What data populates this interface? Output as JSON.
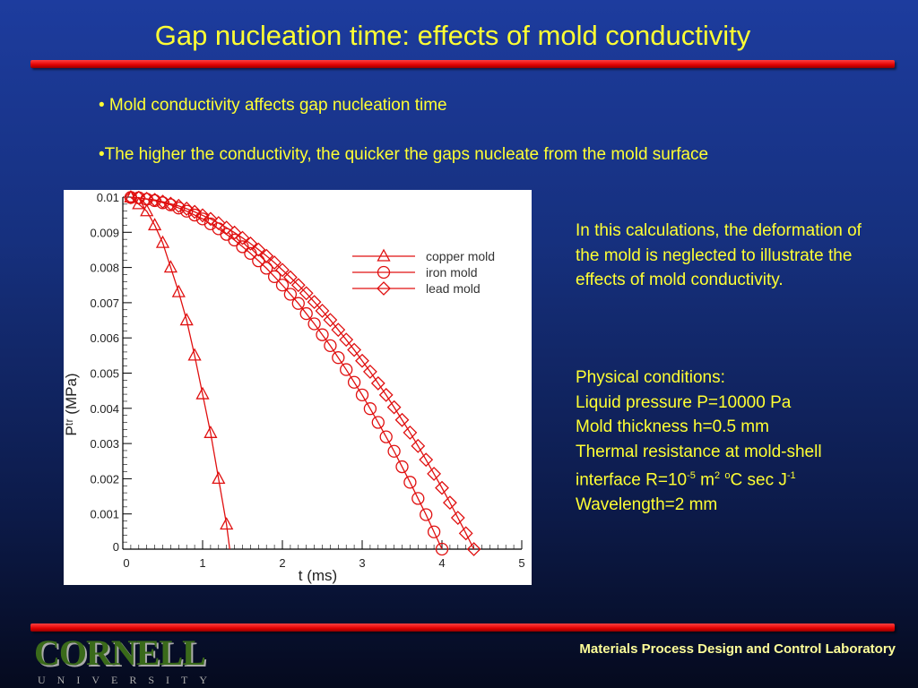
{
  "title": "Gap nucleation time: effects of mold conductivity",
  "bullets": [
    "• Mold conductivity affects gap nucleation time",
    "•The higher the conductivity, the quicker the gaps nucleate from the mold surface"
  ],
  "side": {
    "note": "In this calculations, the deformation of the mold is neglected to illustrate the effects of mold conductivity.",
    "conditions_title": "Physical conditions:",
    "pressure": "Liquid pressure P=10000 Pa",
    "thickness": "Mold thickness h=0.5 mm",
    "resistance_1": "Thermal resistance at mold-shell",
    "resistance_2a": "interface  R=10",
    "resistance_exp1": "-5",
    "resistance_2b": " m",
    "resistance_exp2": "2",
    "resistance_2c": " ",
    "resistance_exp3": "o",
    "resistance_2d": "C sec J",
    "resistance_exp4": "-1",
    "wavelength": "Wavelength=2 mm"
  },
  "footer": {
    "lab": "Materials Process Design and Control Laboratory",
    "logo_main": "CORNELL",
    "logo_sub": "UNIVERSITY"
  },
  "colors": {
    "accent": "#ffff33",
    "bar": "#e00000",
    "series": "#e01010"
  },
  "chart_data": {
    "type": "line",
    "xlabel": "t (ms)",
    "ylabel": "P^tr (MPa)",
    "xlim": [
      0,
      5
    ],
    "ylim": [
      0,
      0.01
    ],
    "xticks": [
      "0",
      "1",
      "2",
      "3",
      "4",
      "5"
    ],
    "yticks": [
      "0",
      "0.001",
      "0.002",
      "0.003",
      "0.004",
      "0.005",
      "0.006",
      "0.007",
      "0.008",
      "0.009",
      "0.01"
    ],
    "legend_position": "top-right",
    "series": [
      {
        "name": "copper mold",
        "marker": "triangle",
        "x": [
          0.1,
          0.2,
          0.3,
          0.4,
          0.5,
          0.6,
          0.7,
          0.8,
          0.9,
          1.0,
          1.1,
          1.2,
          1.3,
          1.34
        ],
        "y": [
          0.00999,
          0.0098,
          0.0096,
          0.0092,
          0.0087,
          0.008,
          0.0073,
          0.0065,
          0.0055,
          0.0044,
          0.0033,
          0.002,
          0.0007,
          0
        ]
      },
      {
        "name": "iron mold",
        "marker": "circle",
        "x": [
          0.1,
          0.2,
          0.3,
          0.4,
          0.5,
          0.6,
          0.7,
          0.8,
          0.9,
          1.0,
          1.1,
          1.2,
          1.3,
          1.4,
          1.5,
          1.6,
          1.7,
          1.8,
          1.9,
          2.0,
          2.1,
          2.2,
          2.3,
          2.4,
          2.5,
          2.6,
          2.7,
          2.8,
          2.9,
          3.0,
          3.1,
          3.2,
          3.3,
          3.4,
          3.5,
          3.6,
          3.7,
          3.8,
          3.9,
          4.0
        ],
        "y": [
          0.00999,
          0.00998,
          0.00994,
          0.0099,
          0.00984,
          0.00978,
          0.00969,
          0.0096,
          0.00949,
          0.00938,
          0.00924,
          0.0091,
          0.00894,
          0.00878,
          0.00859,
          0.0084,
          0.00819,
          0.00798,
          0.00774,
          0.0075,
          0.00724,
          0.00698,
          0.00669,
          0.0064,
          0.00609,
          0.00578,
          0.00544,
          0.0051,
          0.00474,
          0.00438,
          0.00399,
          0.0036,
          0.00319,
          0.00278,
          0.00234,
          0.0019,
          0.00144,
          0.00098,
          0.00049,
          0
        ]
      },
      {
        "name": "lead mold",
        "marker": "diamond",
        "x": [
          0.1,
          0.2,
          0.3,
          0.4,
          0.5,
          0.6,
          0.7,
          0.8,
          0.9,
          1.0,
          1.1,
          1.2,
          1.3,
          1.4,
          1.5,
          1.6,
          1.7,
          1.8,
          1.9,
          2.0,
          2.1,
          2.2,
          2.3,
          2.4,
          2.5,
          2.6,
          2.7,
          2.8,
          2.9,
          3.0,
          3.1,
          3.2,
          3.3,
          3.4,
          3.5,
          3.6,
          3.7,
          3.8,
          3.9,
          4.0,
          4.1,
          4.2,
          4.3,
          4.4
        ],
        "y": [
          0.00999,
          0.00998,
          0.00995,
          0.00992,
          0.00987,
          0.00981,
          0.00975,
          0.00967,
          0.00958,
          0.00948,
          0.00938,
          0.00926,
          0.00913,
          0.00899,
          0.00884,
          0.00868,
          0.00851,
          0.00833,
          0.00814,
          0.00793,
          0.00772,
          0.0075,
          0.00727,
          0.00702,
          0.00677,
          0.00651,
          0.00623,
          0.00595,
          0.00566,
          0.00535,
          0.00504,
          0.00471,
          0.00438,
          0.00403,
          0.00367,
          0.00331,
          0.00293,
          0.00254,
          0.00214,
          0.00174,
          0.00132,
          0.00089,
          0.00045,
          0
        ]
      }
    ]
  }
}
